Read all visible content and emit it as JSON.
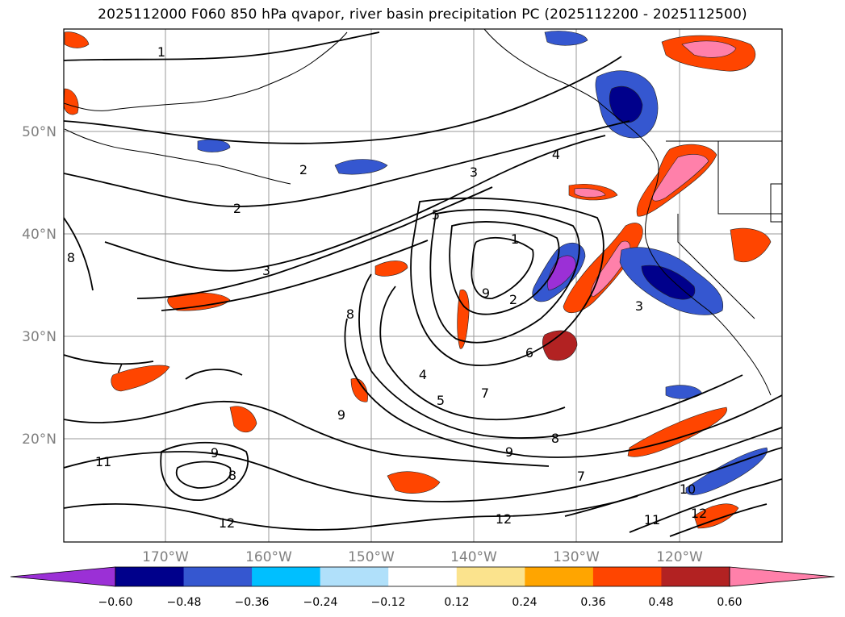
{
  "title": "2025112000 F060 850 hPa qvapor, river basin precipitation PC (2025112200 - 2025112500)",
  "lat_labels": [
    "50°N",
    "40°N",
    "30°N",
    "20°N"
  ],
  "lon_labels": [
    "170°W",
    "160°W",
    "150°W",
    "140°W",
    "130°W",
    "120°W"
  ],
  "contour_labels": [
    "1",
    "2",
    "2",
    "3",
    "3",
    "4",
    "5",
    "1",
    "2",
    "3",
    "4",
    "5",
    "6",
    "7",
    "7",
    "7",
    "8",
    "8",
    "8",
    "8",
    "9",
    "9",
    "9",
    "9",
    "10",
    "11",
    "11",
    "12",
    "12",
    "12"
  ],
  "colorbar": {
    "colors": [
      "#9b30d6",
      "#00008b",
      "#3557d0",
      "#00bfff",
      "#b0e0fa",
      "#ffffff",
      "#fbe38d",
      "#ffa500",
      "#ff4500",
      "#b22222",
      "#ff80aa"
    ],
    "tick_labels": [
      "−0.60",
      "−0.48",
      "−0.36",
      "−0.24",
      "−0.12",
      "0.12",
      "0.24",
      "0.36",
      "0.48",
      "0.60"
    ]
  }
}
